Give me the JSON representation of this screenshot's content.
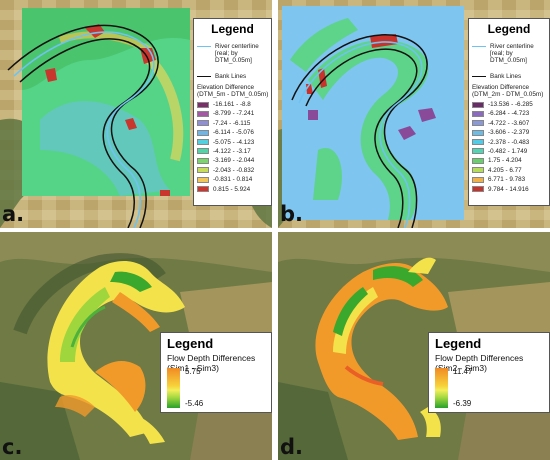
{
  "panels": {
    "a": {
      "label": "a.",
      "legend": {
        "title": "Legend",
        "river_line": "River centerline",
        "river_sub": "[real; by DTM_0.05m]",
        "bank_line": "Bank Lines",
        "elev_title": "Elevation Difference",
        "elev_sub": "(DTM_5m - DTM_0.05m)",
        "classes": [
          {
            "label": "-16.161 - -8.8",
            "color": "#7a2f6b"
          },
          {
            "label": "-8.799 - -7.241",
            "color": "#a35aa2"
          },
          {
            "label": "-7.24 - -6.115",
            "color": "#8f8fd6"
          },
          {
            "label": "-6.114 - -5.076",
            "color": "#6fb6e8"
          },
          {
            "label": "-5.075 - -4.123",
            "color": "#52d0e0"
          },
          {
            "label": "-4.122 - -3.17",
            "color": "#4fd6a8"
          },
          {
            "label": "-3.169 - -2.044",
            "color": "#78d66a"
          },
          {
            "label": "-2.043 - -0.832",
            "color": "#c6dc5a"
          },
          {
            "label": "-0.831 - 0.814",
            "color": "#f1c65a"
          },
          {
            "label": "0.815 - 5.924",
            "color": "#d4322b"
          }
        ]
      }
    },
    "b": {
      "label": "b.",
      "legend": {
        "title": "Legend",
        "river_line": "River centerline",
        "river_sub": "[real; by DTM_0.05m]",
        "bank_line": "Bank Lines",
        "elev_title": "Elevation Difference",
        "elev_sub": "(DTM_2m - DTM_0.05m)",
        "classes": [
          {
            "label": "-13.536 - -6.285",
            "color": "#6b2a6a"
          },
          {
            "label": "-6.284 - -4.723",
            "color": "#8a6bbd"
          },
          {
            "label": "-4.722 - -3.607",
            "color": "#8a9ad8"
          },
          {
            "label": "-3.606 - -2.379",
            "color": "#6bbde6"
          },
          {
            "label": "-2.378 - -0.483",
            "color": "#52cce6"
          },
          {
            "label": "-0.482 - 1.749",
            "color": "#4fd6b4"
          },
          {
            "label": "1.75 - 4.204",
            "color": "#66d06a"
          },
          {
            "label": "4.205 - 6.77",
            "color": "#b5dc5a"
          },
          {
            "label": "6.771 - 9.783",
            "color": "#f0b04a"
          },
          {
            "label": "9.784 - 14.916",
            "color": "#c8322b"
          }
        ]
      }
    },
    "c": {
      "label": "c.",
      "legend": {
        "title": "Legend",
        "subtitle": "Flow Depth Differences",
        "subtitle2": "(Sim1 - Sim3)",
        "max": "5.75",
        "min": "-5.46"
      }
    },
    "d": {
      "label": "d.",
      "legend": {
        "title": "Legend",
        "subtitle": "Flow Depth Differences",
        "subtitle2": "(Sim2 - Sim3)",
        "max": "11.47",
        "min": "-6.39"
      }
    }
  },
  "colors": {
    "field": "#c7b27a",
    "forest": "#4f6a3a",
    "raster_green": "#4cd27c",
    "raster_blue": "#74c3ee",
    "river_line": "#6fc3f0",
    "bank_line": "#111111"
  }
}
